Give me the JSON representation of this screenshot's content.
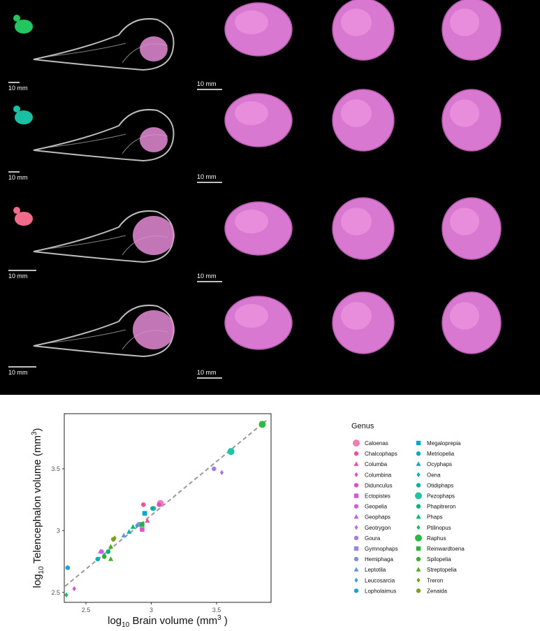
{
  "image_panel": {
    "skull_scale_labels": [
      "10 mm",
      "10 mm",
      "10 mm",
      "10 mm"
    ],
    "brain_scale_labels": [
      "10 mm",
      "10 mm",
      "10 mm",
      "10 mm"
    ]
  },
  "chart_data": {
    "type": "scatter",
    "x_label_parts": [
      "log",
      "10",
      " Brain volume (mm",
      "3",
      " )"
    ],
    "y_label_parts": [
      "log",
      "10",
      " Telencephalon volume (mm",
      "3",
      ")"
    ],
    "legend_title": "Genus",
    "xlim": [
      2.334,
      3.917
    ],
    "ylim": [
      2.42,
      3.946
    ],
    "xticks": [
      2.5,
      3,
      3.5
    ],
    "yticks": [
      2.5,
      3,
      3.5
    ],
    "fit_line": {
      "color": "#999999",
      "x": [
        2.34,
        3.88
      ],
      "y": [
        2.55,
        3.89
      ]
    },
    "series": [
      {
        "name": "Caloenas",
        "color": "#f27db0",
        "marker": "circle",
        "x": [
          3.07
        ],
        "y": [
          3.22
        ]
      },
      {
        "name": "Chalcophaps",
        "color": "#ee4f9f",
        "marker": "circle",
        "x": [
          2.94
        ],
        "y": [
          3.21
        ]
      },
      {
        "name": "Columba",
        "color": "#ea4fb0",
        "marker": "triangle",
        "x": [
          2.97
        ],
        "y": [
          3.08
        ]
      },
      {
        "name": "Columbina",
        "color": "#e54dbd",
        "marker": "diamond",
        "x": [
          2.41
        ],
        "y": [
          2.53
        ]
      },
      {
        "name": "Didunculus",
        "color": "#de4ec9",
        "marker": "circle",
        "x": [
          3.06
        ],
        "y": [
          3.21
        ]
      },
      {
        "name": "Ectopistes",
        "color": "#d656d4",
        "marker": "square",
        "x": [
          2.93
        ],
        "y": [
          3.01
        ]
      },
      {
        "name": "Geopelia",
        "color": "#cc5ddb",
        "marker": "circle",
        "x": [
          2.62
        ],
        "y": [
          2.83
        ]
      },
      {
        "name": "Geophaps",
        "color": "#be67e0",
        "marker": "triangle",
        "x": [
          2.61
        ],
        "y": [
          2.83
        ]
      },
      {
        "name": "Geotrygon",
        "color": "#b06fe2",
        "marker": "diamond",
        "x": [
          3.54
        ],
        "y": [
          3.47
        ]
      },
      {
        "name": "Goura",
        "color": "#a47be3",
        "marker": "circle",
        "x": [
          3.48
        ],
        "y": [
          3.5
        ]
      },
      {
        "name": "Gymnophaps",
        "color": "#9785e1",
        "marker": "square",
        "x": [
          2.91
        ],
        "y": [
          3.05
        ]
      },
      {
        "name": "Hemiphaga",
        "color": "#7d8fe0",
        "marker": "circle",
        "x": [
          3.02
        ],
        "y": [
          3.18
        ]
      },
      {
        "name": "Leptotila",
        "color": "#5f98df",
        "marker": "triangle",
        "x": [
          2.79
        ],
        "y": [
          2.96
        ]
      },
      {
        "name": "Leucosarcia",
        "color": "#3a9fdc",
        "marker": "diamond",
        "x": [
          2.89
        ],
        "y": [
          3.04
        ]
      },
      {
        "name": "Lopholaimus",
        "color": "#13a4d8",
        "marker": "circle",
        "x": [
          2.36
        ],
        "y": [
          2.7
        ]
      },
      {
        "name": "Megaloprepia",
        "color": "#00a8cf",
        "marker": "square",
        "x": [
          2.95
        ],
        "y": [
          3.14
        ]
      },
      {
        "name": "Metriopelia",
        "color": "#00abc4",
        "marker": "circle",
        "x": [
          2.59
        ],
        "y": [
          2.77
        ]
      },
      {
        "name": "Ocyphaps",
        "color": "#00adb8",
        "marker": "triangle",
        "x": [
          2.83
        ],
        "y": [
          2.99
        ]
      },
      {
        "name": "Oena",
        "color": "#00afab",
        "marker": "diamond",
        "x": [
          2.64
        ],
        "y": [
          2.8
        ]
      },
      {
        "name": "Otidiphaps",
        "color": "#00b19c",
        "marker": "circle",
        "x": [
          3.01
        ],
        "y": [
          3.18
        ]
      },
      {
        "name": "Pezophaps",
        "color": "#1fc4a4",
        "marker": "circle",
        "x": [
          3.61
        ],
        "y": [
          3.64
        ]
      },
      {
        "name": "Phapitreron",
        "color": "#00b679",
        "marker": "circle",
        "x": [
          2.67
        ],
        "y": [
          2.83
        ]
      },
      {
        "name": "Phaps",
        "color": "#00b867",
        "marker": "triangle",
        "x": [
          2.86
        ],
        "y": [
          3.03
        ]
      },
      {
        "name": "Ptilinopus",
        "color": "#19b955",
        "marker": "diamond",
        "x": [
          2.35
        ],
        "y": [
          2.48
        ]
      },
      {
        "name": "Raphus",
        "color": "#2cba45",
        "marker": "circle",
        "x": [
          3.85
        ],
        "y": [
          3.86
        ]
      },
      {
        "name": "Reinwardtoena",
        "color": "#28b23a",
        "marker": "square",
        "x": [
          2.93
        ],
        "y": [
          3.05
        ]
      },
      {
        "name": "Spilopelia",
        "color": "#3aad2e",
        "marker": "circle",
        "x": [
          2.64
        ],
        "y": [
          2.79
        ]
      },
      {
        "name": "Streptopelia",
        "color": "#50aa24",
        "marker": "triangle",
        "x": [
          2.69,
          2.69
        ],
        "y": [
          2.77,
          2.87
        ]
      },
      {
        "name": "Treron",
        "color": "#6aa31f",
        "marker": "diamond",
        "x": [
          2.72
        ],
        "y": [
          2.94
        ]
      },
      {
        "name": "Zenaida",
        "color": "#7f9e1c",
        "marker": "circle",
        "x": [
          2.71
        ],
        "y": [
          2.93
        ]
      }
    ]
  }
}
